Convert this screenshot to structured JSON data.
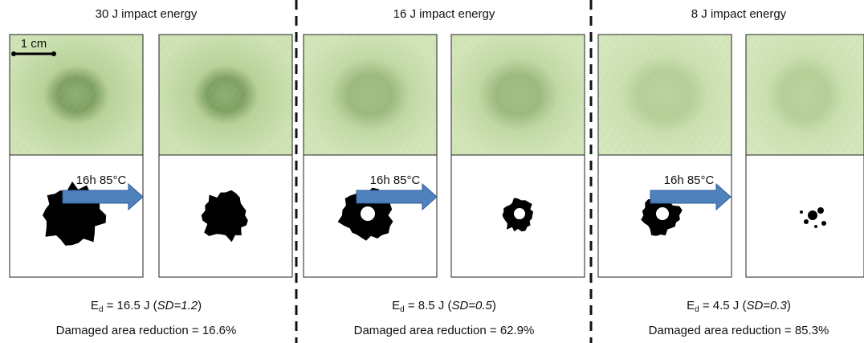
{
  "scale_bar": "1 cm",
  "panels": [
    {
      "title": "30 J impact energy",
      "arrow_label": "16h 85°C",
      "energy": {
        "symbol": "E",
        "subscript": "d",
        "value": " = 16.5 J (",
        "sd": "SD=1.2",
        "close": ")"
      },
      "reduction": "Damaged area reduction = 16.6%"
    },
    {
      "title": "16 J impact energy",
      "arrow_label": "16h 85°C",
      "energy": {
        "symbol": "E",
        "subscript": "d",
        "value": " = 8.5 J (",
        "sd": "SD=0.5",
        "close": ")"
      },
      "reduction": "Damaged area reduction = 62.9%"
    },
    {
      "title": "8 J impact energy",
      "arrow_label": "16h 85°C",
      "energy": {
        "symbol": "E",
        "subscript": "d",
        "value": " = 4.5 J (",
        "sd": "SD=0.3",
        "close": ")"
      },
      "reduction": "Damaged area reduction = 85.3%"
    }
  ]
}
